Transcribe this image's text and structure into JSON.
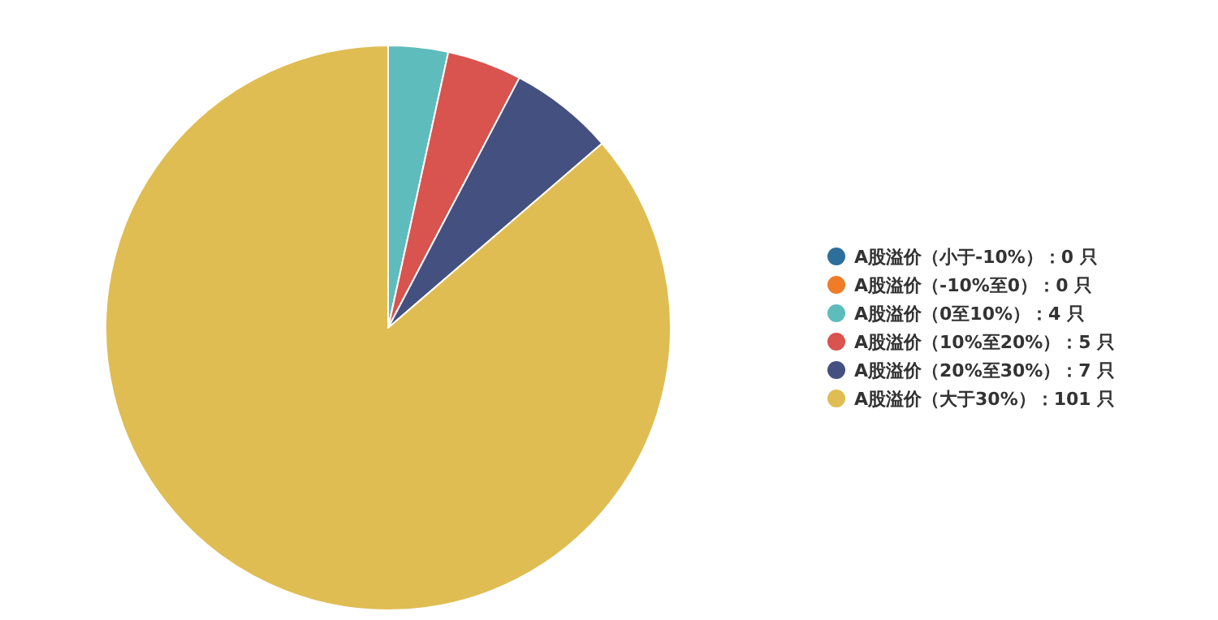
{
  "chart_data": {
    "type": "pie",
    "categories": [
      "A股溢价（小于-10%）",
      "A股溢价（-10%至0）",
      "A股溢价（0至10%）",
      "A股溢价（10%至20%）",
      "A股溢价（20%至30%）",
      "A股溢价（大于30%）"
    ],
    "values": [
      0,
      0,
      4,
      5,
      7,
      101
    ],
    "value_labels": [
      "：0 只",
      "：0 只",
      "：4 只",
      "：5 只",
      "：7 只",
      "：101 只"
    ],
    "colors": [
      "#2e6e9a",
      "#f07c28",
      "#5fbcbc",
      "#d9534f",
      "#44507f",
      "#dfbd52"
    ],
    "legend": "right"
  }
}
